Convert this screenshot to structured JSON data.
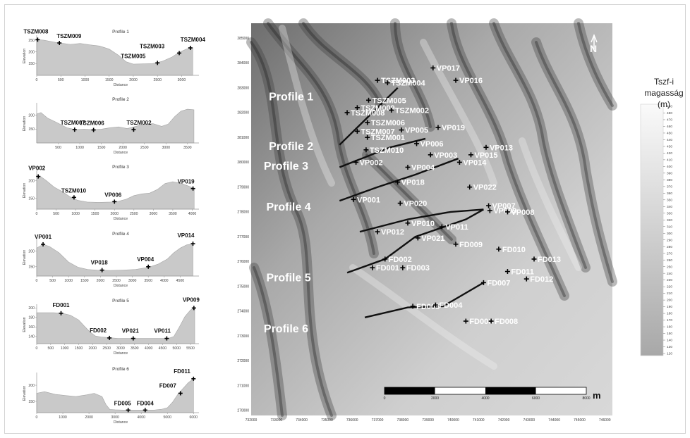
{
  "colors": {
    "profile_fill": "#c9c9c9",
    "profile_stroke": "#a5a5a5",
    "map_line": "#111111",
    "legend_top": "#fafafa",
    "legend_bottom": "#a8a8a8"
  },
  "chart_data": [
    {
      "type": "area",
      "title": "Profile 1",
      "xlabel": "Distance",
      "ylabel": "Elevation",
      "xlim": [
        0,
        3300
      ],
      "ylim": [
        100,
        265
      ],
      "xticks": [
        0,
        500,
        1000,
        1500,
        2000,
        2500,
        3000
      ],
      "yticks": [
        150,
        200,
        250
      ],
      "x": [
        0,
        150,
        400,
        700,
        900,
        1100,
        1300,
        1500,
        1700,
        1850,
        2000,
        2200,
        2400,
        2600,
        2800,
        2950,
        3100,
        3230
      ],
      "y": [
        252,
        250,
        240,
        232,
        236,
        230,
        225,
        212,
        185,
        158,
        148,
        149,
        150,
        160,
        178,
        198,
        212,
        218
      ],
      "points": [
        {
          "label": "TSZM008",
          "x": 20,
          "y": 252
        },
        {
          "label": "TSZM009",
          "x": 470,
          "y": 238
        },
        {
          "label": "TSZM005",
          "x": 2500,
          "y": 153
        },
        {
          "label": "TSZM003",
          "x": 2950,
          "y": 195
        },
        {
          "label": "TSZM004",
          "x": 3180,
          "y": 217
        }
      ]
    },
    {
      "type": "area",
      "title": "Profile 2",
      "xlabel": "Distance",
      "ylabel": "Elevation",
      "xlim": [
        0,
        3700
      ],
      "ylim": [
        100,
        240
      ],
      "xticks": [
        500,
        1000,
        1500,
        2000,
        2500,
        3000,
        3500
      ],
      "yticks": [
        150,
        200
      ],
      "x": [
        0,
        100,
        250,
        450,
        700,
        900,
        1100,
        1300,
        1500,
        1700,
        1900,
        2100,
        2300,
        2500,
        2700,
        2900,
        3050,
        3200,
        3350,
        3500,
        3650
      ],
      "y": [
        205,
        210,
        190,
        175,
        155,
        148,
        150,
        148,
        150,
        155,
        158,
        152,
        160,
        168,
        170,
        160,
        168,
        195,
        215,
        222,
        220
      ],
      "points": [
        {
          "label": "TSZM007",
          "x": 880,
          "y": 148
        },
        {
          "label": "TSZM006",
          "x": 1320,
          "y": 147
        },
        {
          "label": "TSZM002",
          "x": 2250,
          "y": 148
        }
      ]
    },
    {
      "type": "area",
      "title": "Profile 3",
      "xlabel": "Distance",
      "ylabel": "Elevation",
      "xlim": [
        0,
        4100
      ],
      "ylim": [
        120,
        225
      ],
      "xticks": [
        0,
        500,
        1000,
        1500,
        2000,
        2500,
        3000,
        3500,
        4000
      ],
      "yticks": [
        150,
        200
      ],
      "x": [
        0,
        100,
        250,
        450,
        650,
        850,
        1050,
        1300,
        1600,
        1900,
        2100,
        2300,
        2500,
        2700,
        2900,
        3100,
        3300,
        3500,
        3700,
        3900,
        4050
      ],
      "y": [
        205,
        212,
        200,
        182,
        170,
        155,
        145,
        140,
        139,
        140,
        142,
        148,
        158,
        163,
        165,
        175,
        192,
        197,
        193,
        185,
        178
      ],
      "points": [
        {
          "label": "VP002",
          "x": 40,
          "y": 212
        },
        {
          "label": "TSZM010",
          "x": 960,
          "y": 153
        },
        {
          "label": "VP006",
          "x": 2000,
          "y": 141
        },
        {
          "label": "VP019",
          "x": 4020,
          "y": 178
        }
      ]
    },
    {
      "type": "area",
      "title": "Profile 4",
      "xlabel": "Distance",
      "ylabel": "Elevation",
      "xlim": [
        0,
        5000
      ],
      "ylim": [
        120,
        240
      ],
      "xticks": [
        0,
        500,
        1000,
        1500,
        2000,
        2500,
        3000,
        3500,
        4000,
        4500
      ],
      "yticks": [
        150,
        200
      ],
      "x": [
        0,
        200,
        400,
        700,
        1000,
        1300,
        1600,
        1900,
        2300,
        2700,
        3100,
        3500,
        3800,
        4100,
        4300,
        4500,
        4700,
        4900
      ],
      "y": [
        210,
        222,
        215,
        195,
        165,
        148,
        141,
        139,
        138,
        139,
        141,
        148,
        158,
        175,
        195,
        210,
        220,
        224
      ],
      "points": [
        {
          "label": "VP001",
          "x": 200,
          "y": 222
        },
        {
          "label": "VP018",
          "x": 2050,
          "y": 139
        },
        {
          "label": "VP004",
          "x": 3500,
          "y": 150
        },
        {
          "label": "VP014",
          "x": 4900,
          "y": 224
        }
      ]
    },
    {
      "type": "area",
      "title": "Profile 5",
      "xlabel": "Distance",
      "ylabel": "Elevation",
      "xlim": [
        0,
        5700
      ],
      "ylim": [
        125,
        205
      ],
      "xticks": [
        0,
        500,
        1000,
        1500,
        2000,
        2500,
        3000,
        3500,
        4000,
        4500,
        5000,
        5500
      ],
      "yticks": [
        140,
        160,
        180,
        200
      ],
      "x": [
        0,
        300,
        600,
        900,
        1200,
        1500,
        1700,
        1900,
        2100,
        2300,
        2500,
        2700,
        2900,
        3200,
        3500,
        3800,
        4100,
        4400,
        4700,
        4900,
        5100,
        5300,
        5500,
        5650
      ],
      "y": [
        190,
        190,
        190,
        189,
        185,
        175,
        162,
        150,
        141,
        139,
        138,
        137,
        136,
        136,
        136,
        136,
        136,
        136,
        136,
        140,
        160,
        182,
        196,
        200
      ],
      "points": [
        {
          "label": "FD001",
          "x": 870,
          "y": 189
        },
        {
          "label": "FD002",
          "x": 2600,
          "y": 137
        },
        {
          "label": "VP021",
          "x": 3450,
          "y": 136
        },
        {
          "label": "VP011",
          "x": 4650,
          "y": 136
        },
        {
          "label": "VP009",
          "x": 5620,
          "y": 200
        }
      ]
    },
    {
      "type": "area",
      "title": "Profile 6",
      "xlabel": "Distance",
      "ylabel": "Elevation",
      "xlim": [
        0,
        6100
      ],
      "ylim": [
        115,
        235
      ],
      "xticks": [
        0,
        1000,
        2000,
        3000,
        4000,
        5000,
        6000
      ],
      "yticks": [
        150,
        200
      ],
      "x": [
        0,
        300,
        700,
        1100,
        1500,
        1900,
        2200,
        2500,
        2650,
        2800,
        3000,
        3300,
        3600,
        3900,
        4200,
        4500,
        4800,
        5000,
        5200,
        5400,
        5600,
        5800,
        6000
      ],
      "y": [
        175,
        180,
        172,
        168,
        165,
        170,
        175,
        165,
        140,
        125,
        124,
        123,
        123,
        123,
        123,
        123,
        126,
        130,
        148,
        172,
        190,
        208,
        220
      ],
      "points": [
        {
          "label": "FD005",
          "x": 3500,
          "y": 123
        },
        {
          "label": "FD004",
          "x": 4150,
          "y": 123
        },
        {
          "label": "FD007",
          "x": 5500,
          "y": 175
        },
        {
          "label": "FD011",
          "x": 6000,
          "y": 220
        }
      ]
    },
    {
      "type": "map",
      "xlim": [
        732000,
        746300
      ],
      "ylim": [
        269800,
        285600
      ],
      "xticks": [
        732000,
        733000,
        734000,
        735000,
        736000,
        737000,
        738000,
        739000,
        740000,
        741000,
        742000,
        743000,
        744000,
        745000,
        746000
      ],
      "yticks": [
        270000,
        271000,
        272000,
        273000,
        274000,
        275000,
        276000,
        277000,
        278000,
        279000,
        280000,
        281000,
        282000,
        283000,
        284000,
        285000
      ],
      "north_label": "N",
      "profile_labels": [
        {
          "label": "Profile 1",
          "x": 732700,
          "y": 282500
        },
        {
          "label": "Profile 2",
          "x": 732700,
          "y": 280500
        },
        {
          "label": "Profile 3",
          "x": 732500,
          "y": 279700
        },
        {
          "label": "Profile 4",
          "x": 732600,
          "y": 278050
        },
        {
          "label": "Profile 5",
          "x": 732600,
          "y": 275200
        },
        {
          "label": "Profile 6",
          "x": 732500,
          "y": 273150
        }
      ],
      "profile_lines": [
        {
          "points": [
            [
              735500,
              280700
            ],
            [
              737800,
              283000
            ]
          ]
        },
        {
          "points": [
            [
              735500,
              279800
            ],
            [
              737500,
              280600
            ],
            [
              738900,
              280950
            ]
          ]
        },
        {
          "points": [
            [
              735500,
              278450
            ],
            [
              737000,
              279000
            ],
            [
              738500,
              279500
            ],
            [
              740200,
              280150
            ]
          ]
        },
        {
          "points": [
            [
              736300,
              277200
            ],
            [
              738200,
              277700
            ],
            [
              739900,
              278000
            ],
            [
              741200,
              278100
            ]
          ]
        },
        {
          "points": [
            [
              735800,
              275550
            ],
            [
              737300,
              276100
            ],
            [
              738500,
              277000
            ],
            [
              740500,
              277700
            ],
            [
              741200,
              278100
            ]
          ]
        },
        {
          "points": [
            [
              736500,
              273750
            ],
            [
              738200,
              274150
            ],
            [
              739600,
              274200
            ],
            [
              741200,
              275150
            ]
          ]
        }
      ],
      "points": [
        {
          "label": "TSZM003",
          "x": 737000,
          "y": 283300
        },
        {
          "label": "TSZM004",
          "x": 737400,
          "y": 283200
        },
        {
          "label": "VP017",
          "x": 739200,
          "y": 283800
        },
        {
          "label": "VP016",
          "x": 740100,
          "y": 283300
        },
        {
          "label": "TSZM005",
          "x": 736650,
          "y": 282500
        },
        {
          "label": "TSZM009",
          "x": 736200,
          "y": 282200
        },
        {
          "label": "TSZM002",
          "x": 737550,
          "y": 282100
        },
        {
          "label": "TSZM008",
          "x": 735800,
          "y": 282000
        },
        {
          "label": "TSZM006",
          "x": 736600,
          "y": 281600
        },
        {
          "label": "VP019",
          "x": 739400,
          "y": 281400
        },
        {
          "label": "TSZM007",
          "x": 736200,
          "y": 281250
        },
        {
          "label": "VP005",
          "x": 737950,
          "y": 281300
        },
        {
          "label": "TSZM001",
          "x": 736600,
          "y": 281000
        },
        {
          "label": "VP006",
          "x": 738550,
          "y": 280750
        },
        {
          "label": "TSZM010",
          "x": 736550,
          "y": 280500
        },
        {
          "label": "VP013",
          "x": 741300,
          "y": 280600
        },
        {
          "label": "VP003",
          "x": 739100,
          "y": 280300
        },
        {
          "label": "VP015",
          "x": 740700,
          "y": 280300
        },
        {
          "label": "VP002",
          "x": 736150,
          "y": 280000
        },
        {
          "label": "VP004",
          "x": 738200,
          "y": 279800
        },
        {
          "label": "VP014",
          "x": 740250,
          "y": 280000
        },
        {
          "label": "VP018",
          "x": 737800,
          "y": 279200
        },
        {
          "label": "VP022",
          "x": 740650,
          "y": 279000
        },
        {
          "label": "VP001",
          "x": 736050,
          "y": 278500
        },
        {
          "label": "VP020",
          "x": 737900,
          "y": 278350
        },
        {
          "label": "VP007",
          "x": 741400,
          "y": 278250
        },
        {
          "label": "VP009",
          "x": 741450,
          "y": 278050
        },
        {
          "label": "VP008",
          "x": 742150,
          "y": 278000
        },
        {
          "label": "VP010",
          "x": 738200,
          "y": 277550
        },
        {
          "label": "VP011",
          "x": 739550,
          "y": 277400
        },
        {
          "label": "VP012",
          "x": 737000,
          "y": 277200
        },
        {
          "label": "VP021",
          "x": 738600,
          "y": 276950
        },
        {
          "label": "FD009",
          "x": 740100,
          "y": 276700
        },
        {
          "label": "FD010",
          "x": 741800,
          "y": 276500
        },
        {
          "label": "FD002",
          "x": 737300,
          "y": 276100
        },
        {
          "label": "FD013",
          "x": 743200,
          "y": 276100
        },
        {
          "label": "FD001",
          "x": 736800,
          "y": 275750
        },
        {
          "label": "FD003",
          "x": 738000,
          "y": 275750
        },
        {
          "label": "FD011",
          "x": 742150,
          "y": 275600
        },
        {
          "label": "FD012",
          "x": 742900,
          "y": 275300
        },
        {
          "label": "FD007",
          "x": 741200,
          "y": 275150
        },
        {
          "label": "FD005",
          "x": 738400,
          "y": 274200
        },
        {
          "label": "FD004",
          "x": 739300,
          "y": 274250
        },
        {
          "label": "FD006",
          "x": 740500,
          "y": 273600
        },
        {
          "label": "FD008",
          "x": 741500,
          "y": 273600
        }
      ],
      "scalebar": {
        "ticks": [
          0,
          2000,
          4000,
          6000,
          8000
        ],
        "unit": "m"
      }
    }
  ],
  "legend": {
    "title_line1": "Tszf-i magasság",
    "title_line2": "(m)",
    "ticks": [
      490,
      480,
      470,
      460,
      450,
      440,
      430,
      420,
      410,
      400,
      390,
      380,
      370,
      360,
      350,
      340,
      330,
      320,
      310,
      300,
      290,
      280,
      270,
      260,
      250,
      240,
      230,
      220,
      210,
      200,
      190,
      180,
      170,
      160,
      150,
      140,
      130,
      120
    ]
  }
}
